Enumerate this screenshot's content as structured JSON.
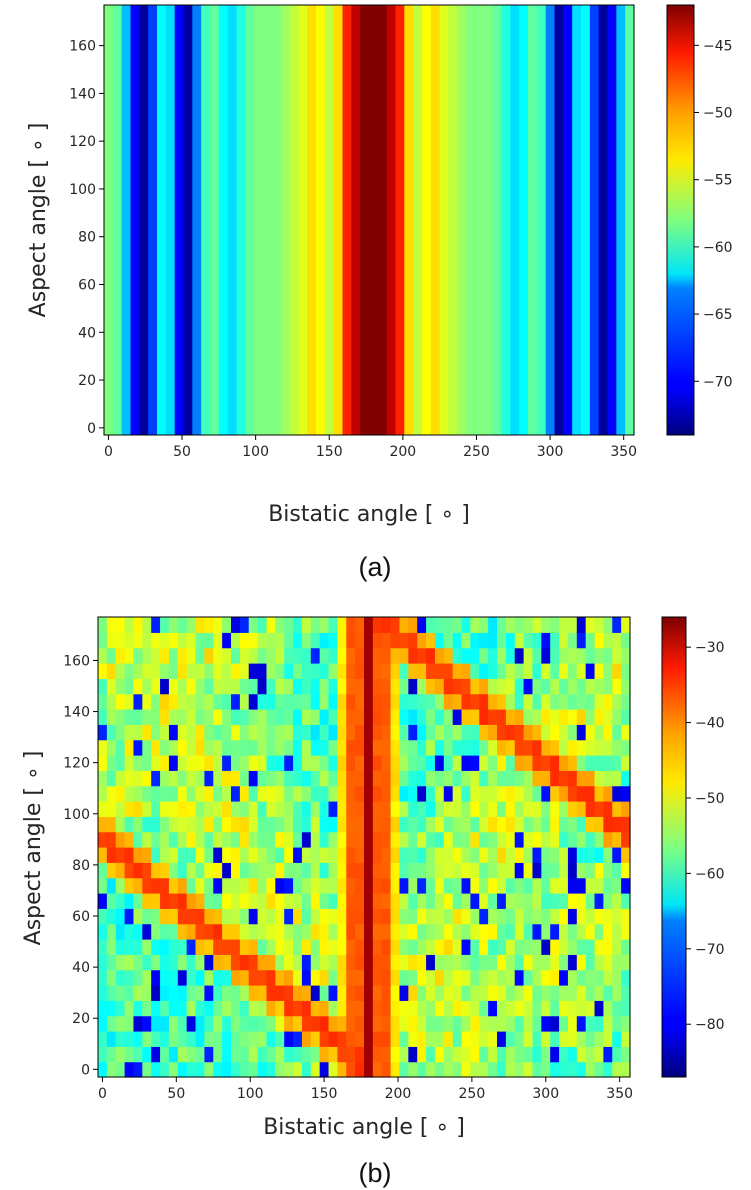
{
  "chart_data": [
    {
      "type": "heatmap",
      "panel_label": "(a)",
      "xlabel": "Bistatic angle [ ∘ ]",
      "ylabel": "Aspect angle [ ∘ ]",
      "xlim": [
        -3,
        357
      ],
      "ylim": [
        -3,
        177
      ],
      "xticks": [
        0,
        50,
        100,
        150,
        200,
        250,
        300,
        350
      ],
      "yticks": [
        0,
        20,
        40,
        60,
        80,
        100,
        120,
        140,
        160
      ],
      "colorbar": {
        "range": [
          -74,
          -42
        ],
        "ticks": [
          -45,
          -50,
          -55,
          -60,
          -65,
          -70
        ],
        "colormap": "jet"
      },
      "grid_step_deg": 6,
      "description_of_pattern": "values constant along aspect angle",
      "profile_vs_bistatic": [
        {
          "x": 0,
          "value": -58
        },
        {
          "x": 6,
          "value": -59
        },
        {
          "x": 12,
          "value": -64
        },
        {
          "x": 18,
          "value": -70
        },
        {
          "x": 24,
          "value": -73
        },
        {
          "x": 30,
          "value": -68
        },
        {
          "x": 36,
          "value": -62
        },
        {
          "x": 42,
          "value": -63
        },
        {
          "x": 48,
          "value": -70
        },
        {
          "x": 54,
          "value": -73
        },
        {
          "x": 60,
          "value": -66
        },
        {
          "x": 66,
          "value": -60
        },
        {
          "x": 72,
          "value": -59
        },
        {
          "x": 78,
          "value": -62
        },
        {
          "x": 84,
          "value": -63
        },
        {
          "x": 90,
          "value": -61
        },
        {
          "x": 96,
          "value": -59
        },
        {
          "x": 102,
          "value": -58
        },
        {
          "x": 108,
          "value": -58
        },
        {
          "x": 114,
          "value": -58
        },
        {
          "x": 120,
          "value": -57
        },
        {
          "x": 126,
          "value": -56
        },
        {
          "x": 132,
          "value": -55
        },
        {
          "x": 138,
          "value": -53
        },
        {
          "x": 144,
          "value": -54
        },
        {
          "x": 150,
          "value": -56
        },
        {
          "x": 156,
          "value": -53
        },
        {
          "x": 162,
          "value": -47
        },
        {
          "x": 168,
          "value": -44
        },
        {
          "x": 174,
          "value": -42
        },
        {
          "x": 180,
          "value": -42
        },
        {
          "x": 186,
          "value": -42
        },
        {
          "x": 192,
          "value": -44
        },
        {
          "x": 198,
          "value": -47
        },
        {
          "x": 204,
          "value": -53
        },
        {
          "x": 210,
          "value": -56
        },
        {
          "x": 216,
          "value": -54
        },
        {
          "x": 222,
          "value": -53
        },
        {
          "x": 228,
          "value": -55
        },
        {
          "x": 234,
          "value": -56
        },
        {
          "x": 240,
          "value": -57
        },
        {
          "x": 246,
          "value": -58
        },
        {
          "x": 252,
          "value": -58
        },
        {
          "x": 258,
          "value": -58
        },
        {
          "x": 264,
          "value": -59
        },
        {
          "x": 270,
          "value": -61
        },
        {
          "x": 276,
          "value": -63
        },
        {
          "x": 282,
          "value": -62
        },
        {
          "x": 288,
          "value": -59
        },
        {
          "x": 294,
          "value": -60
        },
        {
          "x": 300,
          "value": -66
        },
        {
          "x": 306,
          "value": -73
        },
        {
          "x": 312,
          "value": -70
        },
        {
          "x": 318,
          "value": -63
        },
        {
          "x": 324,
          "value": -62
        },
        {
          "x": 330,
          "value": -68
        },
        {
          "x": 336,
          "value": -73
        },
        {
          "x": 342,
          "value": -70
        },
        {
          "x": 348,
          "value": -64
        },
        {
          "x": 354,
          "value": -59
        }
      ]
    },
    {
      "type": "heatmap",
      "panel_label": "(b)",
      "xlabel": "Bistatic angle [ ∘ ]",
      "ylabel": "Aspect angle [ ∘ ]",
      "xlim": [
        -3,
        357
      ],
      "ylim": [
        -3,
        177
      ],
      "xticks": [
        0,
        50,
        100,
        150,
        200,
        250,
        300,
        350
      ],
      "yticks": [
        0,
        20,
        40,
        60,
        80,
        100,
        120,
        140,
        160
      ],
      "colorbar": {
        "range": [
          -87,
          -26
        ],
        "ticks": [
          -30,
          -40,
          -50,
          -60,
          -70,
          -80
        ],
        "colormap": "jet"
      },
      "grid_step_deg": 6,
      "features": [
        {
          "name": "forward-scatter ridge",
          "x_center": 180,
          "peak_value": -28,
          "min_value": -40
        },
        {
          "name": "specular diagonal 1",
          "from": [
            0,
            90
          ],
          "to": [
            174,
            3
          ],
          "peak_value": -37
        },
        {
          "name": "specular diagonal 2",
          "from": [
            186,
            177
          ],
          "to": [
            354,
            93
          ],
          "peak_value": -37
        },
        {
          "name": "background",
          "typical_range": [
            -66,
            -54
          ],
          "null_min": -83
        }
      ]
    }
  ]
}
